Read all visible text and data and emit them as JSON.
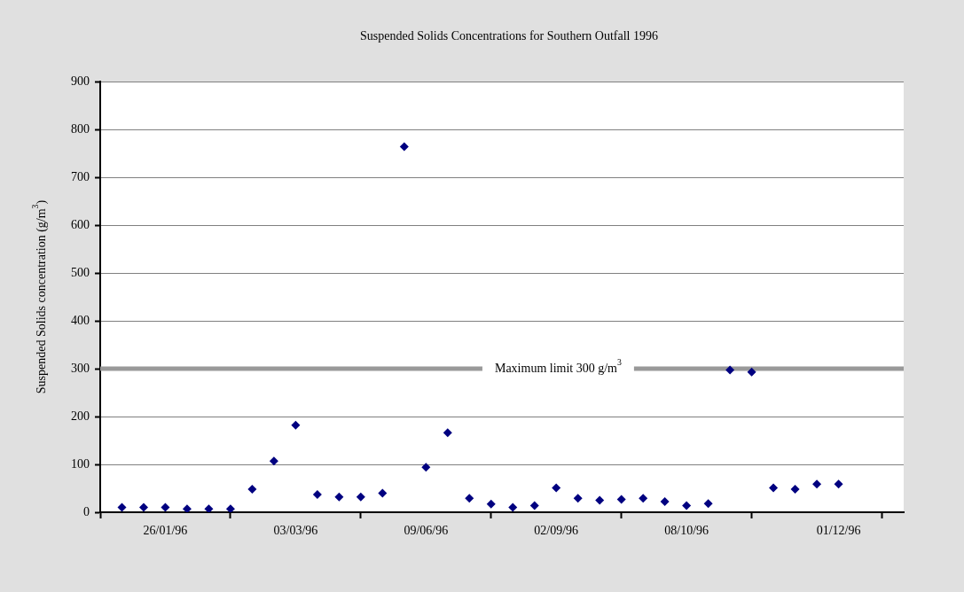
{
  "chart_data": {
    "type": "scatter",
    "title": "Suspended Solids Concentrations for Southern Outfall 1996",
    "ylabel": "Suspended Solids concentration (g/m$^{3}$)",
    "categories": [
      null,
      null,
      null,
      "26/01/96",
      null,
      null,
      null,
      null,
      null,
      "03/03/96",
      null,
      null,
      null,
      null,
      null,
      "09/06/96",
      null,
      null,
      null,
      null,
      null,
      "02/09/96",
      null,
      null,
      null,
      null,
      null,
      "08/10/96",
      null,
      null,
      null,
      null,
      null,
      null,
      "01/12/96",
      null,
      null,
      null
    ],
    "series": [
      {
        "color": "#000080",
        "values": [
          null,
          10,
          10,
          10,
          7,
          7,
          7,
          48,
          107,
          182,
          37,
          32,
          32,
          40,
          764,
          94,
          166,
          29,
          17,
          10,
          14,
          51,
          29,
          25,
          27,
          29,
          22,
          14,
          18,
          297,
          293,
          51,
          48,
          59,
          59,
          null,
          null,
          null
        ]
      }
    ],
    "ylim": [
      0,
      900
    ],
    "yticks": [
      0,
      100,
      200,
      300,
      400,
      500,
      600,
      700,
      800,
      900
    ],
    "grid": "y",
    "marker": "diamond",
    "legend": false,
    "ref_lines": [
      {
        "axis": "y",
        "value": 300,
        "label": "Maximum limit 300 g/m$^{3}$",
        "color": "#999999"
      }
    ]
  }
}
